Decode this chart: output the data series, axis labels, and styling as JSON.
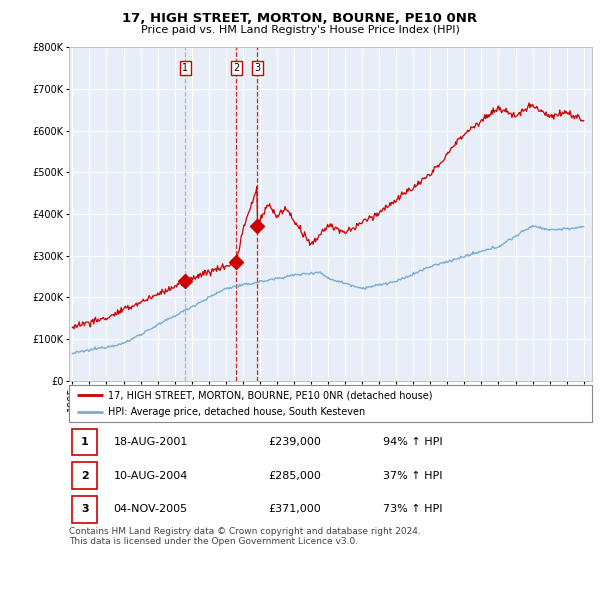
{
  "title": "17, HIGH STREET, MORTON, BOURNE, PE10 0NR",
  "subtitle": "Price paid vs. HM Land Registry's House Price Index (HPI)",
  "legend_label_red": "17, HIGH STREET, MORTON, BOURNE, PE10 0NR (detached house)",
  "legend_label_blue": "HPI: Average price, detached house, South Kesteven",
  "footer": "Contains HM Land Registry data © Crown copyright and database right 2024.\nThis data is licensed under the Open Government Licence v3.0.",
  "transactions": [
    {
      "num": 1,
      "date": "18-AUG-2001",
      "price": "£239,000",
      "hpi": "94% ↑ HPI",
      "x_year": 2001.62,
      "price_val": 239000
    },
    {
      "num": 2,
      "date": "10-AUG-2004",
      "price": "£285,000",
      "hpi": "37% ↑ HPI",
      "x_year": 2004.62,
      "price_val": 285000
    },
    {
      "num": 3,
      "date": "04-NOV-2005",
      "price": "£371,000",
      "hpi": "73% ↑ HPI",
      "x_year": 2005.84,
      "price_val": 371000
    }
  ],
  "ylim": [
    0,
    800000
  ],
  "yticks": [
    0,
    100000,
    200000,
    300000,
    400000,
    500000,
    600000,
    700000,
    800000
  ],
  "xlim_start": 1994.8,
  "xlim_end": 2025.5,
  "chart_bg": "#e8eef8",
  "grid_color": "#ffffff",
  "red_color": "#cc0000",
  "blue_color": "#7aadcf",
  "vline_colors": [
    "#aaaaaa",
    "#cc0000",
    "#cc0000"
  ],
  "vline_styles": [
    "--",
    "--",
    "--"
  ]
}
